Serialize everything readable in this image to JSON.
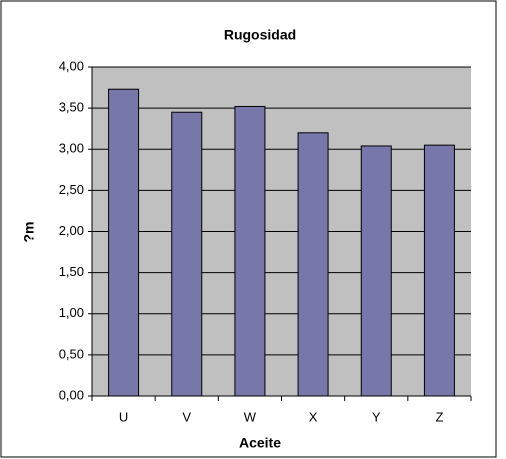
{
  "chart_data": {
    "type": "bar",
    "title": "Rugosidad",
    "xlabel": "Aceite",
    "ylabel": "?m",
    "categories": [
      "U",
      "V",
      "W",
      "X",
      "Y",
      "Z"
    ],
    "values": [
      3.73,
      3.45,
      3.52,
      3.2,
      3.04,
      3.05
    ],
    "color": "#7777aa",
    "ylim": [
      0,
      4
    ],
    "yticks": [
      {
        "value": 0,
        "label": "0,00"
      },
      {
        "value": 0.5,
        "label": "0,50"
      },
      {
        "value": 1,
        "label": "1,00"
      },
      {
        "value": 1.5,
        "label": "1,50"
      },
      {
        "value": 2,
        "label": "2,00"
      },
      {
        "value": 2.5,
        "label": "2,50"
      },
      {
        "value": 3,
        "label": "3,00"
      },
      {
        "value": 3.5,
        "label": "3,50"
      },
      {
        "value": 4,
        "label": "4,00"
      }
    ],
    "grid": true
  }
}
